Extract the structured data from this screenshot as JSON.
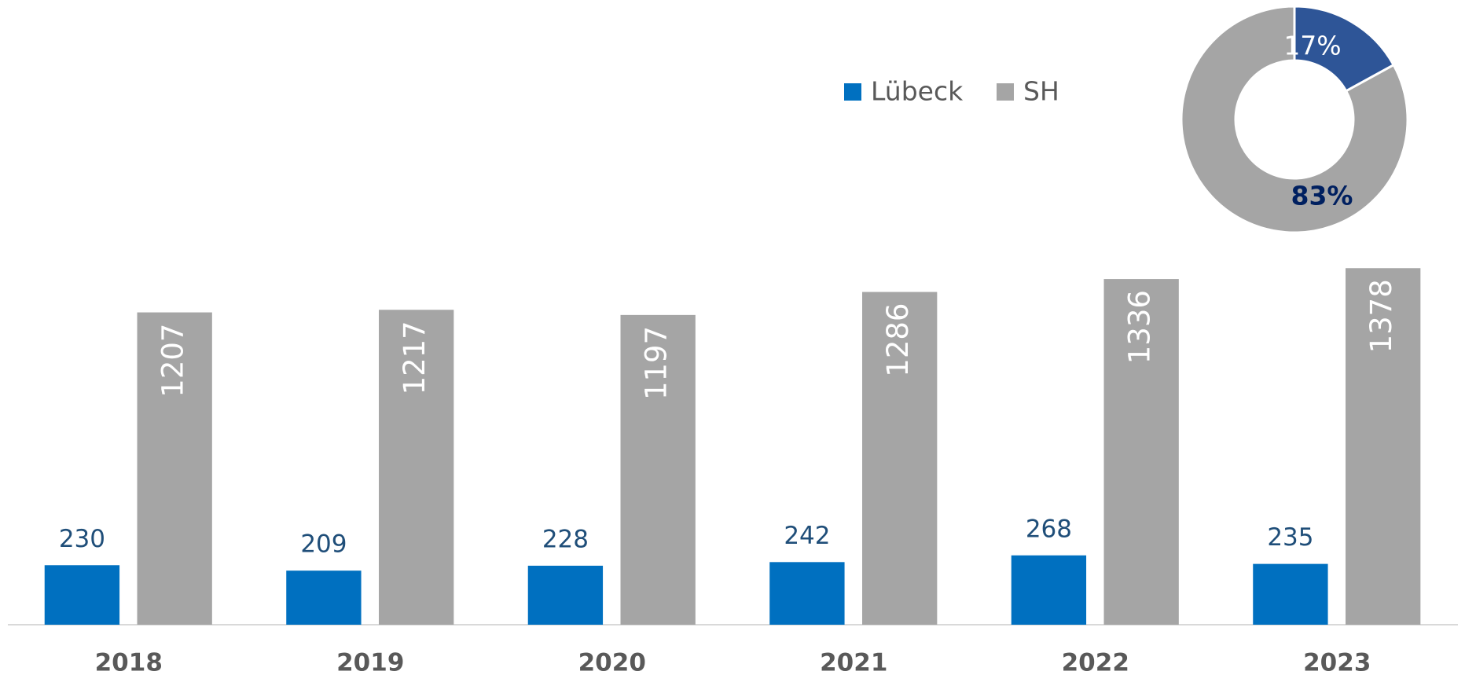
{
  "chart_data": [
    {
      "type": "bar",
      "categories": [
        "2018",
        "2019",
        "2020",
        "2021",
        "2022",
        "2023"
      ],
      "series": [
        {
          "name": "Lübeck",
          "color": "#0070c0",
          "values": [
            230,
            209,
            228,
            242,
            268,
            235
          ]
        },
        {
          "name": "SH",
          "color": "#a5a5a5",
          "values": [
            1207,
            1217,
            1197,
            1286,
            1336,
            1378
          ]
        }
      ],
      "ylim": [
        0,
        1400
      ]
    },
    {
      "type": "pie",
      "categories": [
        "Lübeck",
        "SH"
      ],
      "values": [
        17,
        83
      ],
      "value_labels": [
        "17%",
        "83%"
      ],
      "colors": [
        "#2e5597",
        "#a5a5a5"
      ]
    }
  ]
}
